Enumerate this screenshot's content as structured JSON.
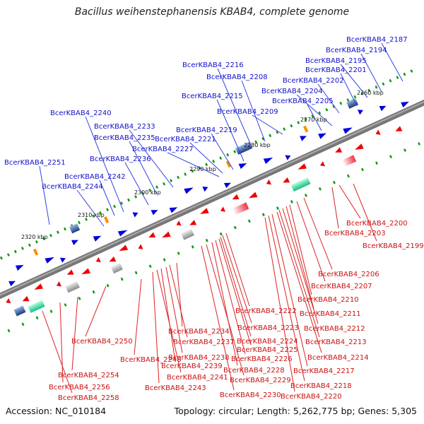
{
  "title": "Bacillus weihenstephanensis KBAB4, complete genome",
  "footer": {
    "accession": "Accession: NC_010184",
    "summary": "Topology: circular; Length: 5,262,775 bp; Genes: 5,305"
  },
  "scale_labels": [
    "2260 kbp",
    "2270 kbp",
    "2280 kbp",
    "2290 kbp",
    "2300 kbp",
    "2310 kbp",
    "2320 kbp"
  ],
  "top_labels": [
    "BcerKBAB4_2187",
    "BcerKBAB4_2194",
    "BcerKBAB4_2195",
    "BcerKBAB4_2201",
    "BcerKBAB4_2202",
    "BcerKBAB4_2204",
    "BcerKBAB4_2205",
    "BcerKBAB4_2208",
    "BcerKBAB4_2209",
    "BcerKBAB4_2215",
    "BcerKBAB4_2216",
    "BcerKBAB4_2219",
    "BcerKBAB4_2221",
    "BcerKBAB4_2227",
    "BcerKBAB4_2233",
    "BcerKBAB4_2235",
    "BcerKBAB4_2236",
    "BcerKBAB4_2240",
    "BcerKBAB4_2242",
    "BcerKBAB4_2244",
    "BcerKBAB4_2251"
  ],
  "bottom_labels": [
    "BcerKBAB4_2199",
    "BcerKBAB4_2200",
    "BcerKBAB4_2203",
    "BcerKBAB4_2206",
    "BcerKBAB4_2207",
    "BcerKBAB4_2210",
    "BcerKBAB4_2211",
    "BcerKBAB4_2212",
    "BcerKBAB4_2213",
    "BcerKBAB4_2214",
    "BcerKBAB4_2217",
    "BcerKBAB4_2218",
    "BcerKBAB4_2220",
    "BcerKBAB4_2222",
    "BcerKBAB4_2223",
    "BcerKBAB4_2224",
    "BcerKBAB4_2225",
    "BcerKBAB4_2226",
    "BcerKBAB4_2228",
    "BcerKBAB4_2229",
    "BcerKBAB4_2230",
    "BcerKBAB4_2234",
    "BcerKBAB4_2237",
    "BcerKBAB4_2238",
    "BcerKBAB4_2239",
    "BcerKBAB4_2241",
    "BcerKBAB4_2243",
    "BcerKBAB4_2248",
    "BcerKBAB4_2250",
    "BcerKBAB4_2254",
    "BcerKBAB4_2256",
    "BcerKBAB4_2258"
  ],
  "colors": {
    "forward_gene": "#0000dd",
    "reverse_gene": "#ee0000",
    "backbone": "#777777",
    "rna": "#ff8c00",
    "gc_track": "#20c080"
  }
}
